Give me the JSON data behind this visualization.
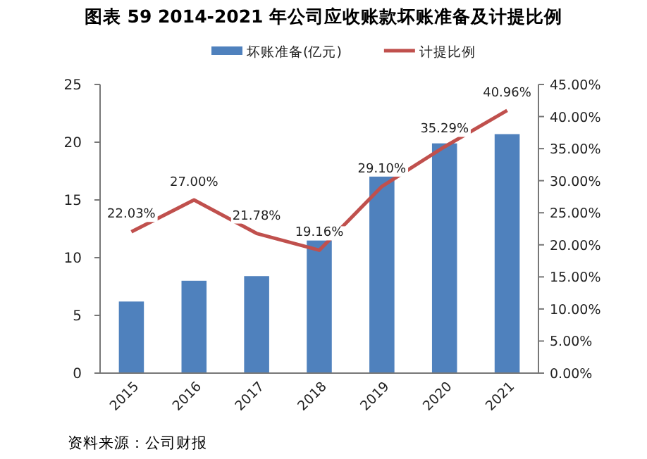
{
  "chart_data": {
    "type": "bar",
    "title": "图表 59 2014-2021 年公司应收账款坏账准备及计提比例",
    "categories": [
      "2015",
      "2016",
      "2017",
      "2018",
      "2019",
      "2020",
      "2021"
    ],
    "series": [
      {
        "name": "坏账准备(亿元)",
        "color": "#4f81bd",
        "values": [
          6.2,
          8.0,
          8.4,
          11.5,
          17.1,
          19.9,
          20.7
        ]
      },
      {
        "name": "计提比例",
        "type": "line",
        "axis": "y2",
        "color": "#c0504d",
        "values": [
          22.03,
          27.0,
          21.78,
          19.16,
          29.1,
          35.29,
          40.96
        ],
        "value_labels": [
          "22.03%",
          "27.00%",
          "21.78%",
          "19.16%",
          "29.10%",
          "35.29%",
          "40.96%"
        ]
      }
    ],
    "ylim": [
      0,
      25
    ],
    "yticks": [
      0,
      5,
      10,
      15,
      20,
      25
    ],
    "y2lim": [
      0,
      45
    ],
    "y2ticks": [
      {
        "value": 0,
        "label": "0.00%"
      },
      {
        "value": 5,
        "label": "5.00%"
      },
      {
        "value": 10,
        "label": "10.00%"
      },
      {
        "value": 15,
        "label": "15.00%"
      },
      {
        "value": 20,
        "label": "20.00%"
      },
      {
        "value": 25,
        "label": "25.00%"
      },
      {
        "value": 30,
        "label": "30.00%"
      },
      {
        "value": 35,
        "label": "35.00%"
      },
      {
        "value": 40,
        "label": "40.00%"
      },
      {
        "value": 45,
        "label": "45.00%"
      }
    ],
    "legend": "top",
    "grid": false,
    "annotations": [
      "资料来源：公司财报"
    ]
  }
}
